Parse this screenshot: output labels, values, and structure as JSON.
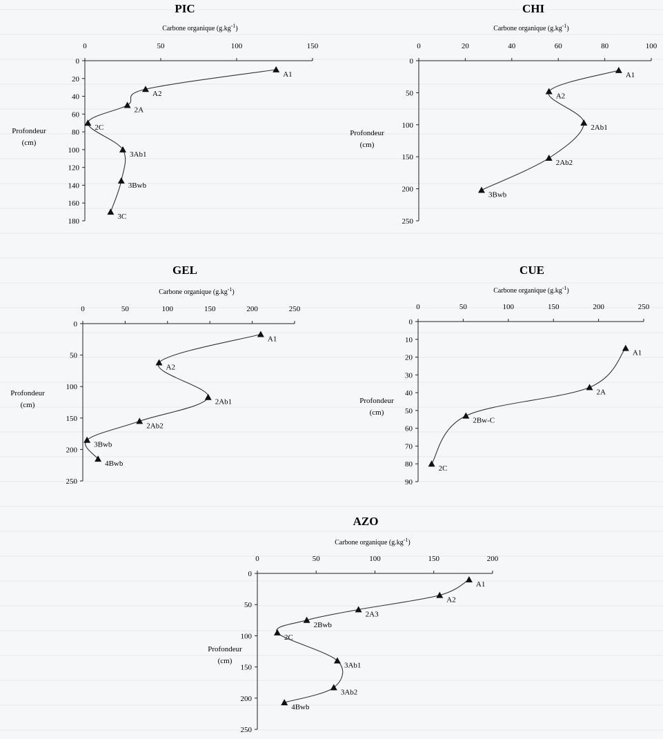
{
  "chart_data": [
    {
      "id": "pic",
      "type": "line",
      "title": "PIC",
      "xlabel": "Carbone organique (g.kg",
      "xlabel_sup": "-1",
      "xlabel_end": ")",
      "ylabel": [
        "Profondeur",
        "(cm)"
      ],
      "xlim": [
        0,
        150
      ],
      "xticks": [
        0,
        50,
        100,
        150
      ],
      "ylim": [
        0,
        180
      ],
      "yticks": [
        0,
        20,
        40,
        60,
        80,
        100,
        120,
        140,
        160,
        180
      ],
      "points": [
        {
          "label": "A1",
          "x": 126,
          "y": 10
        },
        {
          "label": "A2",
          "x": 40,
          "y": 32
        },
        {
          "label": "2A",
          "x": 28,
          "y": 50
        },
        {
          "label": "2C",
          "x": 2,
          "y": 70
        },
        {
          "label": "3Ab1",
          "x": 25,
          "y": 100
        },
        {
          "label": "3Bwb",
          "x": 24,
          "y": 135
        },
        {
          "label": "3C",
          "x": 17,
          "y": 170
        }
      ]
    },
    {
      "id": "chi",
      "type": "line",
      "title": "CHI",
      "xlabel": "Carbone organique (g.kg",
      "xlabel_sup": "-1",
      "xlabel_end": ")",
      "ylabel": [
        "Profondeur",
        "(cm)"
      ],
      "xlim": [
        0,
        100
      ],
      "xticks": [
        0,
        20,
        40,
        60,
        80,
        100
      ],
      "ylim": [
        0,
        250
      ],
      "yticks": [
        0,
        50,
        100,
        150,
        200,
        250
      ],
      "points": [
        {
          "label": "A1",
          "x": 86,
          "y": 15
        },
        {
          "label": "A2",
          "x": 56,
          "y": 48
        },
        {
          "label": "2Ab1",
          "x": 71,
          "y": 97
        },
        {
          "label": "2Ab2",
          "x": 56,
          "y": 152
        },
        {
          "label": "3Bwb",
          "x": 27,
          "y": 202
        }
      ]
    },
    {
      "id": "gel",
      "type": "line",
      "title": "GEL",
      "xlabel": "Carbone organique (g.kg",
      "xlabel_sup": "-1",
      "xlabel_end": ")",
      "ylabel": [
        "Profondeur",
        "(cm)"
      ],
      "xlim": [
        0,
        250
      ],
      "xticks": [
        0,
        50,
        100,
        150,
        200,
        250
      ],
      "ylim": [
        0,
        250
      ],
      "yticks": [
        0,
        50,
        100,
        150,
        200,
        250
      ],
      "points": [
        {
          "label": "A1",
          "x": 210,
          "y": 17
        },
        {
          "label": "A2",
          "x": 90,
          "y": 62
        },
        {
          "label": "2Ab1",
          "x": 148,
          "y": 117
        },
        {
          "label": "2Ab2",
          "x": 67,
          "y": 155
        },
        {
          "label": "3Bwb",
          "x": 5,
          "y": 185
        },
        {
          "label": "4Bwb",
          "x": 18,
          "y": 215
        }
      ]
    },
    {
      "id": "cue",
      "type": "line",
      "title": "CUE",
      "xlabel": "Carbone organique (g.kg",
      "xlabel_sup": "-1",
      "xlabel_end": ")",
      "ylabel": [
        "Profondeur",
        "(cm)"
      ],
      "xlim": [
        0,
        250
      ],
      "xticks": [
        0,
        50,
        100,
        150,
        200,
        250
      ],
      "ylim": [
        0,
        90
      ],
      "yticks": [
        0,
        10,
        20,
        30,
        40,
        50,
        60,
        70,
        80,
        90
      ],
      "points": [
        {
          "label": "A1",
          "x": 230,
          "y": 15
        },
        {
          "label": "2A",
          "x": 190,
          "y": 37
        },
        {
          "label": "2Bw-C",
          "x": 53,
          "y": 53
        },
        {
          "label": "2C",
          "x": 15,
          "y": 80
        }
      ]
    },
    {
      "id": "azo",
      "type": "line",
      "title": "AZO",
      "xlabel": "Carbone organique (g.kg",
      "xlabel_sup": "-1",
      "xlabel_end": ")",
      "ylabel": [
        "Profondeur",
        "(cm)"
      ],
      "xlim": [
        0,
        200
      ],
      "xticks": [
        0,
        50,
        100,
        150,
        200
      ],
      "ylim": [
        0,
        250
      ],
      "yticks": [
        0,
        50,
        100,
        150,
        200,
        250
      ],
      "points": [
        {
          "label": "A1",
          "x": 180,
          "y": 10
        },
        {
          "label": "A2",
          "x": 155,
          "y": 35
        },
        {
          "label": "2A3",
          "x": 86,
          "y": 58
        },
        {
          "label": "2Bwb",
          "x": 42,
          "y": 75
        },
        {
          "label": "2C",
          "x": 17,
          "y": 95
        },
        {
          "label": "3Ab1",
          "x": 68,
          "y": 140
        },
        {
          "label": "3Ab2",
          "x": 65,
          "y": 183
        },
        {
          "label": "4Bwb",
          "x": 23,
          "y": 207
        }
      ]
    }
  ]
}
